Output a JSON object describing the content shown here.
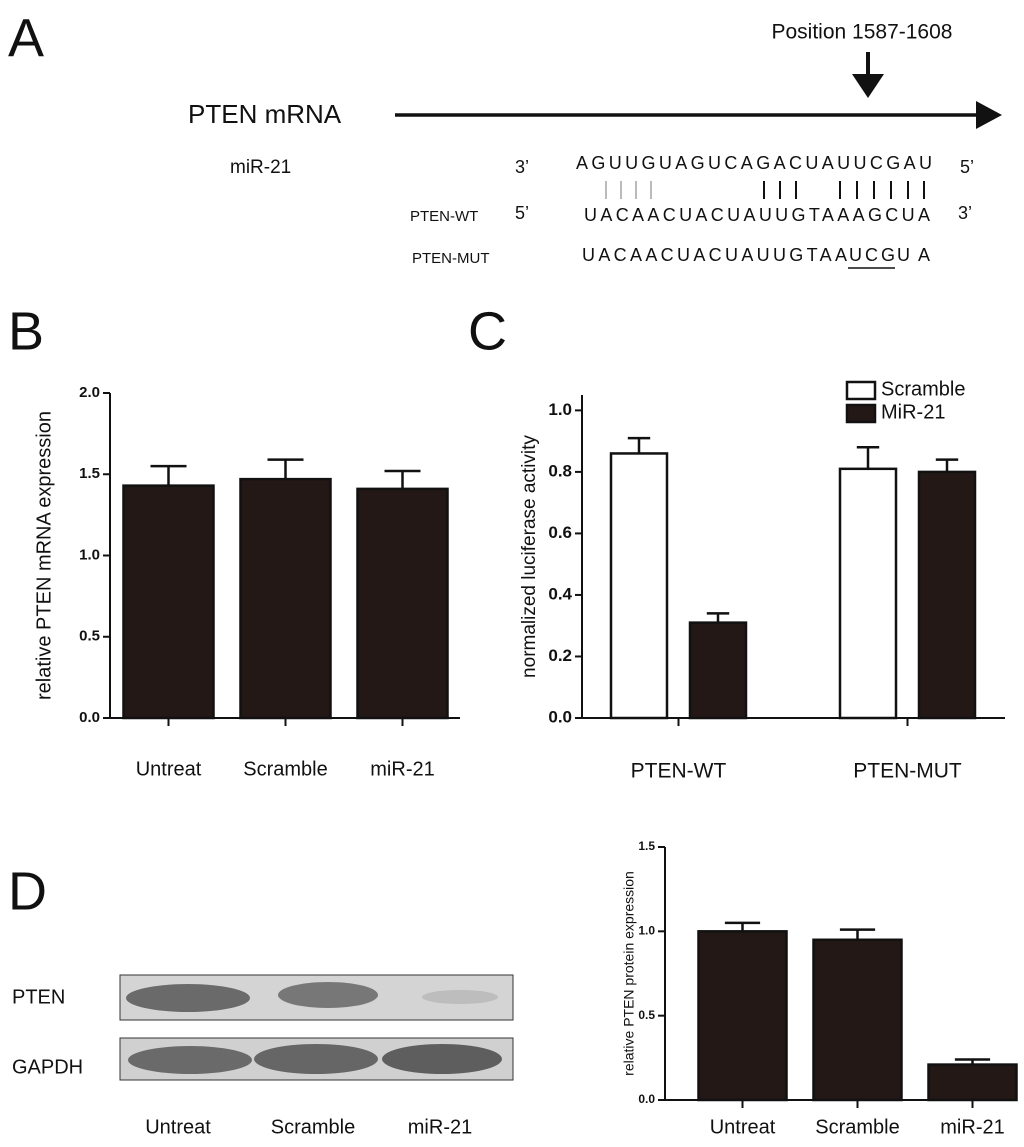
{
  "panel_labels": [
    "A",
    "B",
    "C",
    "D"
  ],
  "diagram": {
    "position_label": "Position 1587-1608",
    "mrna_label": "PTEN mRNA",
    "mir_label": "miR-21",
    "mir_3": "3’",
    "mir_seq": "AGUUGUAGUCAGACUAUUCGAU",
    "mir_5": "5’",
    "wt_label": "PTEN-WT",
    "wt_5": "5’",
    "wt_seq": "UACAACUACUAUUGTAAAGCUA",
    "wt_3": "3’",
    "mut_label": "PTEN-MUT",
    "mut_seq": [
      "UACAACUACUAUUGTAA",
      "UCG",
      "UA"
    ]
  },
  "blot": {
    "rows": [
      "PTEN",
      "GAPDH"
    ],
    "lanes": [
      "Untreat",
      "Scramble",
      "miR-21"
    ]
  },
  "chart_data": [
    {
      "type": "bar",
      "y_label": "relative PTEN mRNA expression",
      "categories": [
        "Untreat",
        "Scramble",
        "miR-21"
      ],
      "values": [
        1.43,
        1.47,
        1.41
      ],
      "errors": [
        0.12,
        0.12,
        0.11
      ],
      "color": "#231815",
      "ylim": [
        0,
        2.0
      ],
      "yticks": [
        {
          "value": 0,
          "label": "0.0"
        },
        {
          "value": 0.5,
          "label": "0.5"
        },
        {
          "value": 1,
          "label": "1.0"
        },
        {
          "value": 1.5,
          "label": "1.5"
        },
        {
          "value": 2,
          "label": "2.0"
        }
      ]
    },
    {
      "type": "bar",
      "y_label": "normalized luciferase activity",
      "categories": [
        "PTEN-WT",
        "PTEN-MUT"
      ],
      "series": [
        {
          "name": "Scramble",
          "color": "#ffffff",
          "values": [
            0.86,
            0.81
          ],
          "errors": [
            0.05,
            0.07
          ]
        },
        {
          "name": "MiR-21",
          "color": "#231815",
          "values": [
            0.31,
            0.8
          ],
          "errors": [
            0.03,
            0.04
          ]
        }
      ],
      "ylim": [
        0,
        1.05
      ],
      "yticks": [
        {
          "value": 0,
          "label": "0.0"
        },
        0.2,
        0.4,
        0.6,
        0.8,
        {
          "value": 1,
          "label": "1.0"
        }
      ],
      "legend": "upper right"
    },
    {
      "type": "bar",
      "y_label": "relative PTEN protein expression",
      "categories": [
        "Untreat",
        "Scramble",
        "miR-21"
      ],
      "values": [
        1.0,
        0.95,
        0.21
      ],
      "errors": [
        0.05,
        0.06,
        0.03
      ],
      "color": "#231815",
      "ylim": [
        0,
        1.5
      ],
      "yticks": [
        {
          "value": 0,
          "label": "0.0"
        },
        0.5,
        {
          "value": 1,
          "label": "1.0"
        },
        1.5
      ]
    }
  ]
}
